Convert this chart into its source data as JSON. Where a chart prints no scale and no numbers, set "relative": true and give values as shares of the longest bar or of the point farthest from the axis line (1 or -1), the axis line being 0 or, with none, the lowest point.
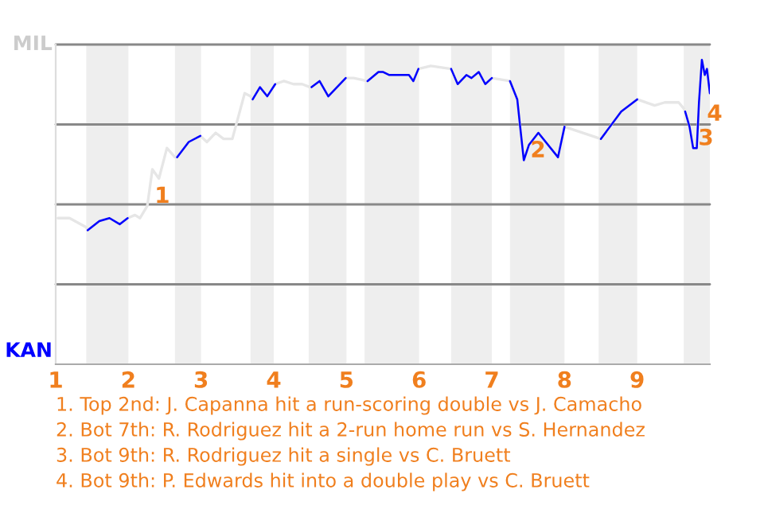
{
  "chart_data": {
    "type": "line",
    "relative": true,
    "xlim": [
      1,
      10
    ],
    "xticks": [
      {
        "value": 1,
        "label": "1"
      },
      {
        "value": 2,
        "label": "2"
      },
      {
        "value": 3,
        "label": "3"
      },
      {
        "value": 4,
        "label": "4"
      },
      {
        "value": 5,
        "label": "5"
      },
      {
        "value": 6,
        "label": "6"
      },
      {
        "value": 7,
        "label": "7"
      },
      {
        "value": 8,
        "label": "8"
      },
      {
        "value": 9,
        "label": "9"
      }
    ],
    "grid": "y",
    "marker": "none",
    "line_style": "solid",
    "bands": [
      {
        "axis": "x",
        "from": 1.42,
        "to": 2,
        "color": "#eeeeee"
      },
      {
        "axis": "x",
        "from": 2.64,
        "to": 3,
        "color": "#eeeeee"
      },
      {
        "axis": "x",
        "from": 3.68,
        "to": 4,
        "color": "#eeeeee"
      },
      {
        "axis": "x",
        "from": 4.48,
        "to": 5,
        "color": "#eeeeee"
      },
      {
        "axis": "x",
        "from": 5.25,
        "to": 6,
        "color": "#eeeeee"
      },
      {
        "axis": "x",
        "from": 6.44,
        "to": 7,
        "color": "#eeeeee"
      },
      {
        "axis": "x",
        "from": 7.25,
        "to": 8,
        "color": "#eeeeee"
      },
      {
        "axis": "x",
        "from": 8.47,
        "to": 9,
        "color": "#eeeeee"
      },
      {
        "axis": "x",
        "from": 9.64,
        "to": 10,
        "color": "#eeeeee"
      }
    ],
    "series": [
      {
        "color": "#e6e6e6",
        "x": [
          1.03,
          1.19,
          1.42,
          1.44,
          1.6,
          1.74,
          1.88,
          1.99,
          2.09,
          2.16,
          2.26,
          2.33,
          2.42,
          2.53,
          2.64,
          2.67,
          2.83,
          2.99,
          3.08,
          3.2,
          3.31,
          3.43,
          3.6,
          3.68,
          3.71,
          3.81,
          3.91,
          4.02,
          4.14,
          4.27,
          4.39,
          4.5,
          4.52,
          4.63,
          4.75,
          4.99,
          5.1,
          5.29,
          5.44,
          5.5,
          5.59,
          5.86,
          5.92,
          5.99,
          6.16,
          6.44,
          6.53,
          6.65,
          6.72,
          6.82,
          6.91,
          7.0,
          7.25,
          7.35,
          7.39,
          7.44,
          7.51,
          7.64,
          7.91,
          8.0,
          8.5,
          8.78,
          9.0,
          9.24,
          9.38,
          9.57,
          9.64,
          9.66,
          9.72,
          9.77,
          9.82,
          9.85,
          9.89,
          9.93,
          9.96,
          10.0
        ],
        "values": [
          0.48,
          0.48,
          0.45,
          0.44,
          0.47,
          0.48,
          0.46,
          0.48,
          0.49,
          0.48,
          0.52,
          0.64,
          0.61,
          0.71,
          0.68,
          0.68,
          0.73,
          0.75,
          0.73,
          0.76,
          0.74,
          0.74,
          0.89,
          0.88,
          0.87,
          0.91,
          0.88,
          0.92,
          0.93,
          0.92,
          0.92,
          0.91,
          0.91,
          0.93,
          0.88,
          0.94,
          0.94,
          0.93,
          0.96,
          0.96,
          0.95,
          0.95,
          0.93,
          0.97,
          0.98,
          0.97,
          0.92,
          0.95,
          0.94,
          0.96,
          0.92,
          0.94,
          0.93,
          0.87,
          0.78,
          0.67,
          0.72,
          0.76,
          0.68,
          0.78,
          0.74,
          0.83,
          0.87,
          0.85,
          0.86,
          0.86,
          0.84,
          0.83,
          0.78,
          0.71,
          0.71,
          0.86,
          1,
          0.95,
          0.97,
          0.89
        ]
      },
      {
        "color": "#0000ff",
        "x": [
          1.44,
          1.6,
          1.74,
          1.88,
          1.99,
          null,
          2.67,
          2.83,
          2.99,
          null,
          3.71,
          3.81,
          3.91,
          4.02,
          null,
          4.52,
          4.63,
          4.75,
          4.99,
          null,
          5.29,
          5.44,
          5.5,
          5.59,
          5.86,
          5.92,
          5.99,
          null,
          6.44,
          6.53,
          6.65,
          6.72,
          6.82,
          6.91,
          7.0,
          null,
          7.25,
          7.35,
          7.39,
          7.44,
          7.51,
          7.64,
          7.91,
          8.0,
          null,
          8.5,
          8.78,
          9.0,
          null,
          9.66,
          9.72,
          9.77,
          9.82,
          9.85,
          9.89,
          9.93,
          9.96,
          10.0
        ],
        "values": [
          0.44,
          0.47,
          0.48,
          0.46,
          0.48,
          null,
          0.68,
          0.73,
          0.75,
          null,
          0.87,
          0.91,
          0.88,
          0.92,
          null,
          0.91,
          0.93,
          0.88,
          0.94,
          null,
          0.93,
          0.96,
          0.96,
          0.95,
          0.95,
          0.93,
          0.97,
          null,
          0.97,
          0.92,
          0.95,
          0.94,
          0.96,
          0.92,
          0.94,
          null,
          0.93,
          0.87,
          0.78,
          0.67,
          0.72,
          0.76,
          0.68,
          0.78,
          null,
          0.74,
          0.83,
          0.87,
          null,
          0.83,
          0.78,
          0.71,
          0.71,
          0.86,
          1,
          0.95,
          0.97,
          0.89
        ]
      }
    ],
    "annotations": [
      {
        "text": "1",
        "x": 2.36,
        "y": 0.55
      },
      {
        "text": "2",
        "x": 7.53,
        "y": 0.7
      },
      {
        "text": "3",
        "x": 9.84,
        "y": 0.74
      },
      {
        "text": "4",
        "x": 9.96,
        "y": 0.82
      },
      "MIL",
      "KAN",
      "1. Top 2nd: J. Capanna hit a run-scoring double vs J. Camacho",
      "2. Bot 7th: R. Rodriguez hit a 2-run home run vs S. Hernandez",
      "3. Bot 9th: R. Rodriguez hit a single vs C. Bruett",
      "4. Bot 9th: P. Edwards hit into a double play vs C. Bruett"
    ]
  }
}
